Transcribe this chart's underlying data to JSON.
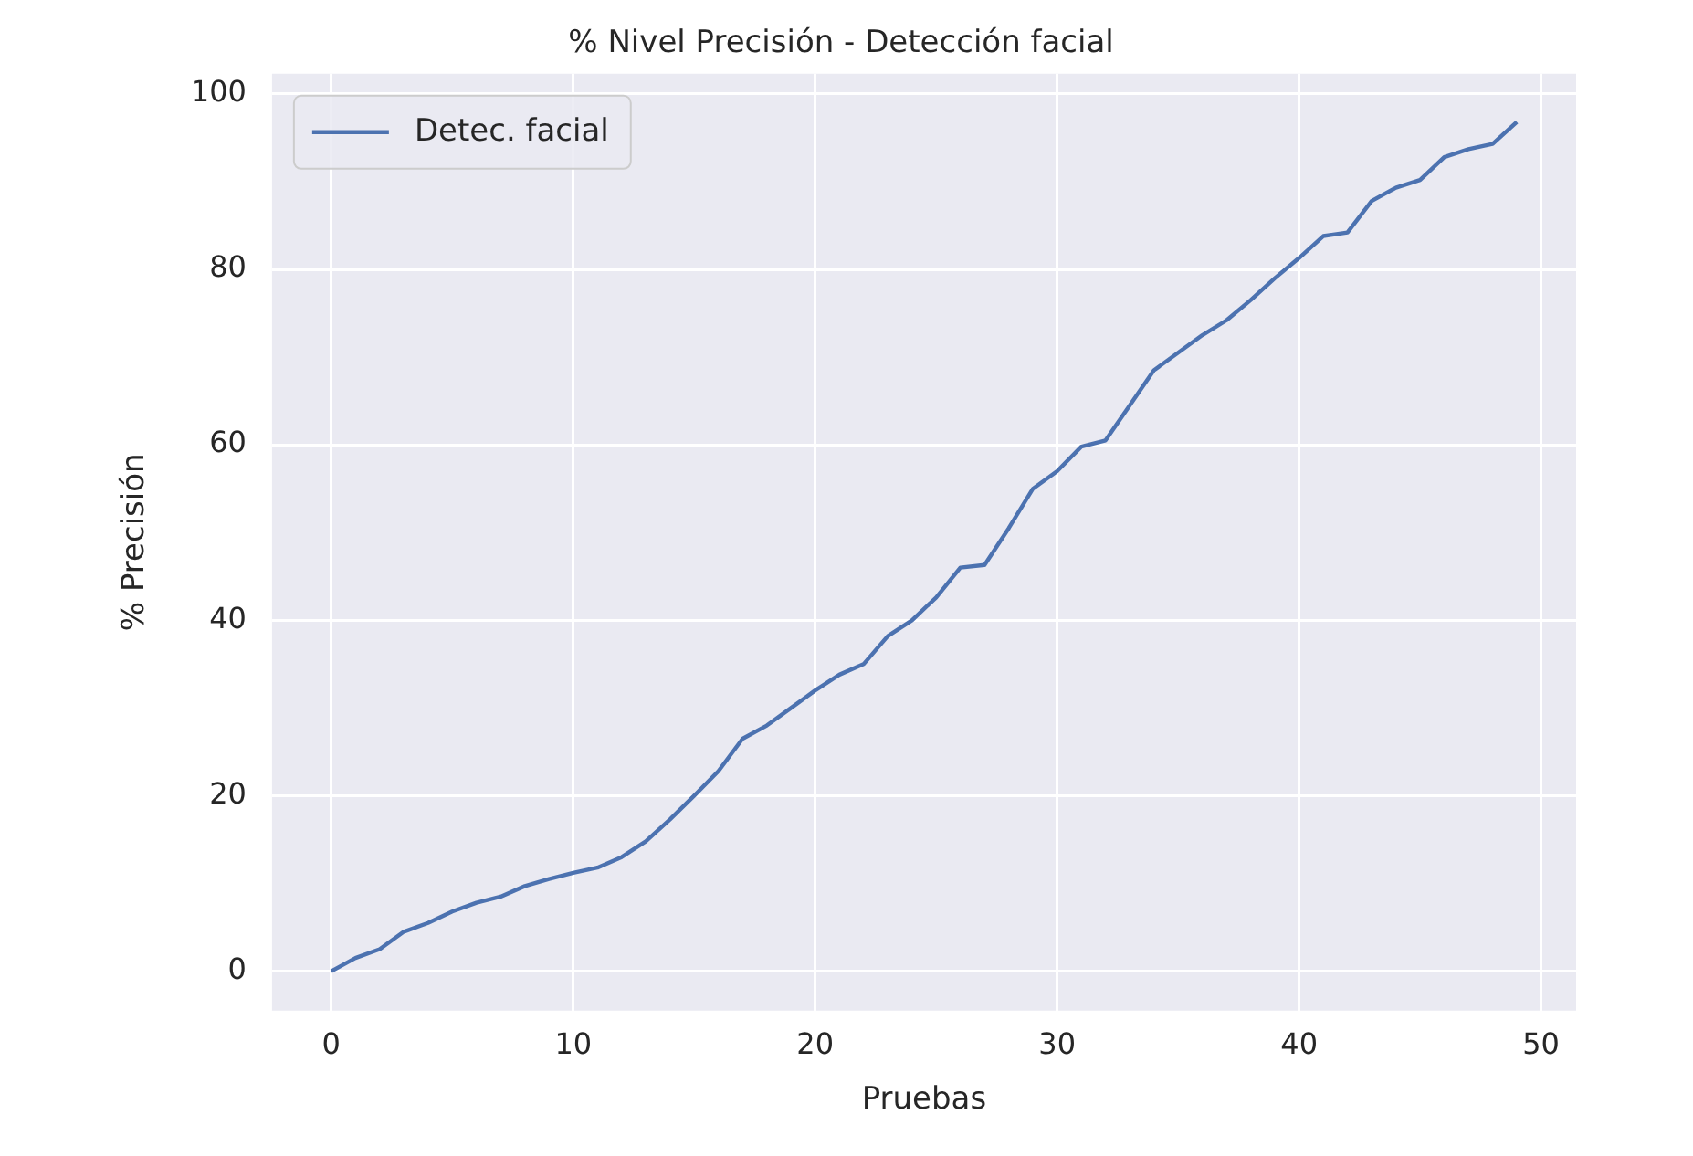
{
  "chart_data": {
    "type": "line",
    "title": "% Nivel Precisión - Detección facial",
    "xlabel": "Pruebas",
    "ylabel": "% Precisión",
    "x": [
      0,
      1,
      2,
      3,
      4,
      5,
      6,
      7,
      8,
      9,
      10,
      11,
      12,
      13,
      14,
      15,
      16,
      17,
      18,
      19,
      20,
      21,
      22,
      23,
      24,
      25,
      26,
      27,
      28,
      29,
      30,
      31,
      32,
      33,
      34,
      35,
      36,
      37,
      38,
      39,
      40,
      41,
      42,
      43,
      44,
      45,
      46,
      47,
      48,
      49
    ],
    "series": [
      {
        "name": "Detec. facial",
        "color": "#4c72b0",
        "values": [
          0,
          1.5,
          2.5,
          4.5,
          5.5,
          6.8,
          7.8,
          8.5,
          9.7,
          10.5,
          11.2,
          11.8,
          13,
          14.8,
          17.3,
          20,
          22.8,
          26.5,
          28,
          30,
          32,
          33.8,
          35,
          38.2,
          40,
          42.6,
          46,
          46.3,
          50.5,
          55,
          57,
          59.8,
          60.5,
          64.5,
          68.5,
          70.5,
          72.5,
          74.2,
          76.5,
          79,
          81.3,
          83.8,
          84.2,
          87.8,
          89.3,
          90.2,
          92.8,
          93.7,
          94.3,
          96.8
        ]
      }
    ],
    "xlim": [
      -2.45,
      51.45
    ],
    "xticks": [
      0,
      10,
      20,
      30,
      40,
      50
    ],
    "ylim": [
      -4.5,
      102.3
    ],
    "yticks": [
      0,
      20,
      40,
      60,
      80,
      100
    ],
    "grid": true,
    "legend": "top left",
    "marker": "none",
    "line_style": "solid"
  }
}
